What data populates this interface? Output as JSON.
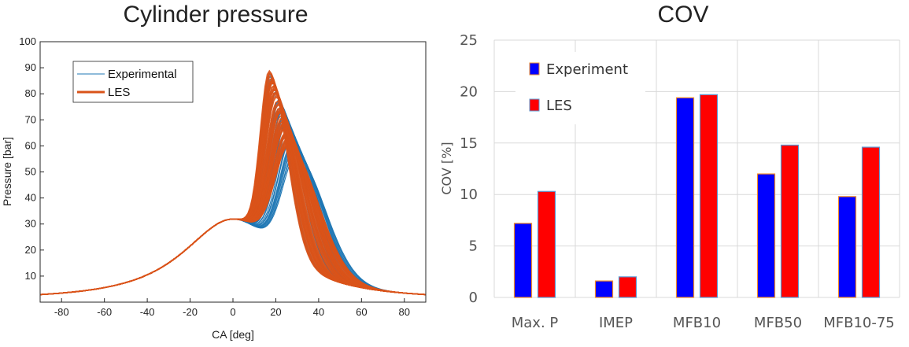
{
  "chart_data": [
    {
      "type": "line",
      "title": "Cylinder pressure",
      "xlabel": "CA [deg]",
      "ylabel": "Pressure [bar]",
      "xlim": [
        -90,
        90
      ],
      "ylim": [
        0,
        100
      ],
      "xticks": [
        -80,
        -60,
        -40,
        -20,
        0,
        20,
        40,
        60,
        80
      ],
      "yticks": [
        10,
        20,
        30,
        40,
        50,
        60,
        70,
        80,
        90,
        100
      ],
      "grid": false,
      "legend_position": "top-left",
      "series": [
        {
          "name": "Experimental",
          "color": "#1f77b4",
          "cycles_peak_range": [
            55,
            88
          ],
          "peak_ca_range": [
            17,
            31
          ],
          "points": [
            [
              -90,
              2.7
            ],
            [
              -80,
              3.6
            ],
            [
              -60,
              5.7
            ],
            [
              -40,
              10.6
            ],
            [
              -20,
              20.0
            ],
            [
              -10,
              27.5
            ],
            [
              -5,
              30.8
            ],
            [
              0,
              31.9
            ],
            [
              10,
              33.5
            ],
            [
              20,
              48.0
            ],
            [
              30,
              56.0
            ],
            [
              40,
              44.0
            ],
            [
              60,
              24.0
            ],
            [
              80,
              16.0
            ],
            [
              90,
              13.0
            ]
          ]
        },
        {
          "name": "LES",
          "color": "#d95319",
          "cycles_peak_range": [
            60,
            89
          ],
          "peak_ca_range": [
            17,
            27
          ],
          "points": [
            [
              -90,
              2.7
            ],
            [
              -80,
              3.6
            ],
            [
              -60,
              5.7
            ],
            [
              -40,
              10.6
            ],
            [
              -20,
              20.0
            ],
            [
              -10,
              27.5
            ],
            [
              -5,
              30.8
            ],
            [
              0,
              31.9
            ],
            [
              10,
              45.0
            ],
            [
              18,
              89.0
            ],
            [
              25,
              70.0
            ],
            [
              40,
              46.0
            ],
            [
              60,
              25.0
            ],
            [
              80,
              17.0
            ],
            [
              90,
              13.6
            ]
          ]
        }
      ]
    },
    {
      "type": "bar",
      "title": "COV",
      "xlabel": "",
      "ylabel": "COV [%]",
      "ylim": [
        0,
        25
      ],
      "yticks": [
        0,
        5,
        10,
        15,
        20,
        25
      ],
      "grid": true,
      "legend_position": "top-left",
      "categories": [
        "Max. P",
        "IMEP",
        "MFB10",
        "MFB50",
        "MFB10-75"
      ],
      "series": [
        {
          "name": "Experiment",
          "color": "#0000ff",
          "values": [
            7.2,
            1.6,
            19.4,
            12.0,
            9.8
          ]
        },
        {
          "name": "LES",
          "color": "#ff0000",
          "values": [
            10.3,
            2.0,
            19.7,
            14.8,
            14.6
          ]
        }
      ]
    }
  ]
}
